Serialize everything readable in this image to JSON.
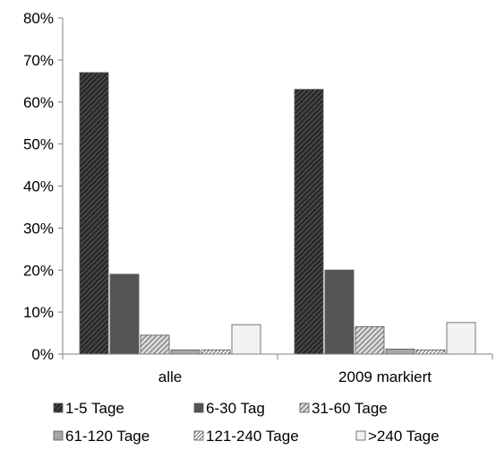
{
  "chart_data": {
    "type": "bar",
    "categories": [
      "alle",
      "2009 markiert"
    ],
    "series": [
      {
        "name": "1-5 Tage",
        "values": [
          67,
          63
        ],
        "color": "#333333",
        "pattern": "hatch-dark"
      },
      {
        "name": "6-30 Tag",
        "values": [
          19,
          20
        ],
        "color": "#555555",
        "pattern": "solid"
      },
      {
        "name": "31-60 Tage",
        "values": [
          4.5,
          6.5
        ],
        "color": "#9a9a9a",
        "pattern": "hatch-mid"
      },
      {
        "name": "61-120 Tage",
        "values": [
          1,
          1.2
        ],
        "color": "#a6a6a6",
        "pattern": "solid"
      },
      {
        "name": "121-240 Tage",
        "values": [
          1,
          1
        ],
        "color": "#444444",
        "pattern": "hatch-fine"
      },
      {
        "name": ">240 Tage",
        "values": [
          7,
          7.5
        ],
        "color": "#f2f2f2",
        "pattern": "solid"
      }
    ],
    "ylim": [
      0,
      80
    ],
    "yticks": [
      0,
      10,
      20,
      30,
      40,
      50,
      60,
      70,
      80
    ],
    "ytick_labels": [
      "0%",
      "10%",
      "20%",
      "30%",
      "40%",
      "50%",
      "60%",
      "70%",
      "80%"
    ],
    "title": "",
    "xlabel": "",
    "ylabel": "",
    "grid": false,
    "legend_position": "bottom"
  }
}
